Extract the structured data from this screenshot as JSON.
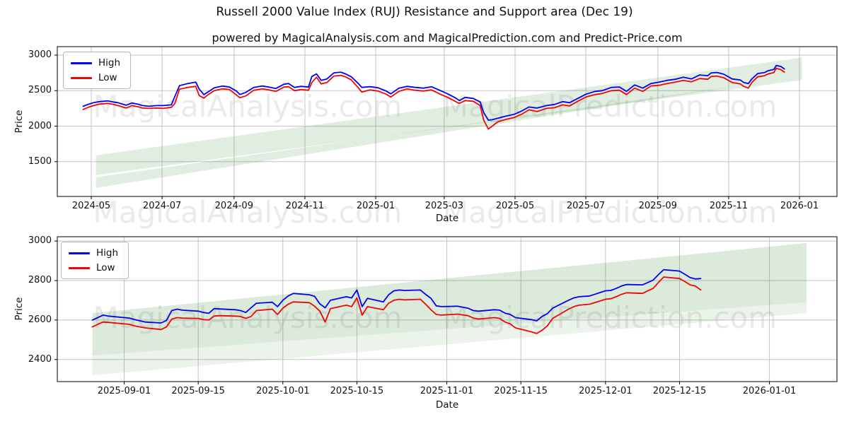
{
  "title": "Russell 2000 Value Index  (RUJ) Resistance and Support area (Dec 19)",
  "subtitle": "powered by MagicalAnalysis.com and MagicalPrediction.com and Predict-Price.com",
  "watermark_left": "MagicalAnalysis.com",
  "watermark_right": "MagicalPrediction.com",
  "accent_colors": {
    "high": "#0202f2",
    "low": "#ee0606",
    "band": "#3c8c3c",
    "grid": "#c3c3c3"
  },
  "chart_data": [
    {
      "type": "line",
      "name": "full-history",
      "xlabel": "Date",
      "ylabel": "Price",
      "grid": true,
      "legend_position": "upper left",
      "xlim": [
        "2024-04-02",
        "2026-02-02"
      ],
      "ylim": [
        1000,
        3120
      ],
      "y_ticks": [
        1500,
        2000,
        2500,
        3000
      ],
      "x_ticks": [
        {
          "date": "2024-05-01",
          "label": "2024-05"
        },
        {
          "date": "2024-07-01",
          "label": "2024-07"
        },
        {
          "date": "2024-09-01",
          "label": "2024-09"
        },
        {
          "date": "2024-11-01",
          "label": "2024-11"
        },
        {
          "date": "2025-01-01",
          "label": "2025-01"
        },
        {
          "date": "2025-03-01",
          "label": "2025-03"
        },
        {
          "date": "2025-05-01",
          "label": "2025-05"
        },
        {
          "date": "2025-07-01",
          "label": "2025-07"
        },
        {
          "date": "2025-09-01",
          "label": "2025-09"
        },
        {
          "date": "2025-11-01",
          "label": "2025-11"
        },
        {
          "date": "2026-01-01",
          "label": "2026-01"
        }
      ],
      "bands": [
        {
          "name": "support-resistance-channel-upper",
          "color": "#3c8c3c",
          "opacity": 0.16,
          "polygon": [
            [
              "2024-05-05",
              1590
            ],
            [
              "2026-01-03",
              2965
            ],
            [
              "2026-01-03",
              2650
            ],
            [
              "2024-05-05",
              1310
            ]
          ]
        },
        {
          "name": "support-resistance-channel-lower",
          "color": "#3c8c3c",
          "opacity": 0.16,
          "polygon": [
            [
              "2024-05-05",
              1280
            ],
            [
              "2025-11-11",
              2575
            ],
            [
              "2024-05-05",
              1130
            ]
          ]
        }
      ],
      "dates": [
        "2024-04-24",
        "2024-04-29",
        "2024-05-03",
        "2024-05-08",
        "2024-05-15",
        "2024-05-20",
        "2024-05-24",
        "2024-05-31",
        "2024-06-05",
        "2024-06-11",
        "2024-06-14",
        "2024-06-20",
        "2024-06-26",
        "2024-07-02",
        "2024-07-09",
        "2024-07-12",
        "2024-07-16",
        "2024-07-23",
        "2024-07-30",
        "2024-08-02",
        "2024-08-06",
        "2024-08-09",
        "2024-08-15",
        "2024-08-22",
        "2024-08-28",
        "2024-09-03",
        "2024-09-06",
        "2024-09-11",
        "2024-09-18",
        "2024-09-25",
        "2024-10-01",
        "2024-10-07",
        "2024-10-14",
        "2024-10-18",
        "2024-10-23",
        "2024-10-29",
        "2024-11-04",
        "2024-11-07",
        "2024-11-11",
        "2024-11-15",
        "2024-11-20",
        "2024-11-26",
        "2024-12-02",
        "2024-12-06",
        "2024-12-11",
        "2024-12-17",
        "2024-12-20",
        "2024-12-27",
        "2025-01-03",
        "2025-01-10",
        "2025-01-14",
        "2025-01-21",
        "2025-01-28",
        "2025-02-04",
        "2025-02-11",
        "2025-02-18",
        "2025-02-25",
        "2025-03-04",
        "2025-03-11",
        "2025-03-14",
        "2025-03-19",
        "2025-03-26",
        "2025-04-01",
        "2025-04-04",
        "2025-04-08",
        "2025-04-11",
        "2025-04-16",
        "2025-04-23",
        "2025-04-30",
        "2025-05-07",
        "2025-05-13",
        "2025-05-20",
        "2025-05-28",
        "2025-06-04",
        "2025-06-11",
        "2025-06-17",
        "2025-06-24",
        "2025-07-01",
        "2025-07-09",
        "2025-07-15",
        "2025-07-23",
        "2025-07-30",
        "2025-08-05",
        "2025-08-12",
        "2025-08-19",
        "2025-08-26",
        "2025-09-02",
        "2025-09-09",
        "2025-09-16",
        "2025-09-23",
        "2025-09-30",
        "2025-10-07",
        "2025-10-14",
        "2025-10-17",
        "2025-10-22",
        "2025-10-28",
        "2025-11-04",
        "2025-11-11",
        "2025-11-14",
        "2025-11-18",
        "2025-11-21",
        "2025-11-26",
        "2025-12-02",
        "2025-12-05",
        "2025-12-10",
        "2025-12-12",
        "2025-12-16",
        "2025-12-19"
      ],
      "series": [
        {
          "name": "High",
          "color": "#0202f2",
          "values": [
            2280,
            2310,
            2330,
            2345,
            2355,
            2340,
            2330,
            2295,
            2325,
            2305,
            2290,
            2280,
            2290,
            2290,
            2300,
            2420,
            2570,
            2600,
            2620,
            2520,
            2445,
            2475,
            2540,
            2565,
            2550,
            2495,
            2445,
            2475,
            2545,
            2565,
            2550,
            2530,
            2590,
            2600,
            2545,
            2560,
            2550,
            2700,
            2735,
            2645,
            2665,
            2750,
            2760,
            2735,
            2695,
            2600,
            2545,
            2555,
            2540,
            2495,
            2455,
            2535,
            2560,
            2545,
            2535,
            2555,
            2505,
            2455,
            2395,
            2360,
            2405,
            2390,
            2340,
            2190,
            2085,
            2090,
            2110,
            2140,
            2165,
            2215,
            2270,
            2255,
            2290,
            2305,
            2345,
            2330,
            2390,
            2450,
            2490,
            2500,
            2545,
            2550,
            2490,
            2580,
            2535,
            2600,
            2620,
            2645,
            2660,
            2690,
            2665,
            2720,
            2710,
            2750,
            2755,
            2730,
            2665,
            2650,
            2615,
            2600,
            2665,
            2740,
            2755,
            2780,
            2800,
            2855,
            2840,
            2805
          ]
        },
        {
          "name": "Low",
          "color": "#ee0606",
          "values": [
            2235,
            2270,
            2290,
            2310,
            2320,
            2305,
            2290,
            2255,
            2290,
            2270,
            2255,
            2250,
            2255,
            2250,
            2265,
            2320,
            2520,
            2545,
            2560,
            2430,
            2395,
            2435,
            2500,
            2525,
            2515,
            2440,
            2400,
            2425,
            2505,
            2525,
            2510,
            2490,
            2550,
            2555,
            2500,
            2515,
            2505,
            2615,
            2690,
            2595,
            2615,
            2705,
            2715,
            2695,
            2650,
            2540,
            2480,
            2510,
            2495,
            2450,
            2410,
            2490,
            2525,
            2505,
            2495,
            2510,
            2455,
            2405,
            2345,
            2320,
            2360,
            2350,
            2290,
            2085,
            1960,
            1995,
            2060,
            2095,
            2120,
            2170,
            2230,
            2205,
            2250,
            2260,
            2300,
            2285,
            2350,
            2410,
            2445,
            2460,
            2500,
            2505,
            2445,
            2535,
            2490,
            2565,
            2575,
            2600,
            2620,
            2645,
            2625,
            2670,
            2660,
            2700,
            2705,
            2680,
            2615,
            2595,
            2560,
            2535,
            2615,
            2695,
            2710,
            2735,
            2755,
            2815,
            2795,
            2760
          ]
        }
      ],
      "legend": [
        {
          "label": "High",
          "color": "#0202f2"
        },
        {
          "label": "Low",
          "color": "#ee0606"
        }
      ]
    },
    {
      "type": "line",
      "name": "recent-detail",
      "xlabel": "Date",
      "ylabel": "Price",
      "grid": true,
      "legend_position": "upper left",
      "xlim": [
        "2025-08-19",
        "2026-01-13"
      ],
      "ylim": [
        2290,
        3040
      ],
      "y_ticks": [
        2400,
        2600,
        2800,
        3000
      ],
      "x_ticks": [
        {
          "date": "2025-09-01",
          "label": "2025-09-01"
        },
        {
          "date": "2025-09-15",
          "label": "2025-09-15"
        },
        {
          "date": "2025-10-01",
          "label": "2025-10-01"
        },
        {
          "date": "2025-10-15",
          "label": "2025-10-15"
        },
        {
          "date": "2025-11-01",
          "label": "2025-11-01"
        },
        {
          "date": "2025-11-15",
          "label": "2025-11-15"
        },
        {
          "date": "2025-12-01",
          "label": "2025-12-01"
        },
        {
          "date": "2025-12-15",
          "label": "2025-12-15"
        },
        {
          "date": "2026-01-01",
          "label": "2026-01-01"
        }
      ],
      "bands": [
        {
          "name": "support-resistance-channel-main",
          "color": "#3c8c3c",
          "opacity": 0.18,
          "polygon": [
            [
              "2025-08-26",
              2635
            ],
            [
              "2026-01-08",
              2990
            ],
            [
              "2026-01-08",
              2690
            ],
            [
              "2025-08-26",
              2420
            ]
          ]
        },
        {
          "name": "support-resistance-channel-faint",
          "color": "#3c8c3c",
          "opacity": 0.1,
          "polygon": [
            [
              "2025-08-26",
              2420
            ],
            [
              "2026-01-08",
              2690
            ],
            [
              "2026-01-08",
              2635
            ],
            [
              "2025-08-26",
              2320
            ]
          ]
        }
      ],
      "dates": [
        "2025-08-26",
        "2025-08-27",
        "2025-08-28",
        "2025-08-29",
        "2025-09-02",
        "2025-09-03",
        "2025-09-04",
        "2025-09-05",
        "2025-09-08",
        "2025-09-09",
        "2025-09-10",
        "2025-09-11",
        "2025-09-12",
        "2025-09-15",
        "2025-09-16",
        "2025-09-17",
        "2025-09-18",
        "2025-09-19",
        "2025-09-22",
        "2025-09-23",
        "2025-09-24",
        "2025-09-25",
        "2025-09-26",
        "2025-09-29",
        "2025-09-30",
        "2025-10-01",
        "2025-10-02",
        "2025-10-03",
        "2025-10-06",
        "2025-10-07",
        "2025-10-08",
        "2025-10-09",
        "2025-10-10",
        "2025-10-13",
        "2025-10-14",
        "2025-10-15",
        "2025-10-16",
        "2025-10-17",
        "2025-10-20",
        "2025-10-21",
        "2025-10-22",
        "2025-10-23",
        "2025-10-24",
        "2025-10-27",
        "2025-10-28",
        "2025-10-29",
        "2025-10-30",
        "2025-10-31",
        "2025-11-03",
        "2025-11-04",
        "2025-11-05",
        "2025-11-06",
        "2025-11-07",
        "2025-11-10",
        "2025-11-11",
        "2025-11-12",
        "2025-11-13",
        "2025-11-14",
        "2025-11-17",
        "2025-11-18",
        "2025-11-19",
        "2025-11-20",
        "2025-11-21",
        "2025-11-24",
        "2025-11-25",
        "2025-11-26",
        "2025-11-28",
        "2025-12-01",
        "2025-12-02",
        "2025-12-03",
        "2025-12-04",
        "2025-12-05",
        "2025-12-08",
        "2025-12-09",
        "2025-12-10",
        "2025-12-11",
        "2025-12-12",
        "2025-12-15",
        "2025-12-16",
        "2025-12-17",
        "2025-12-18",
        "2025-12-19"
      ],
      "series": [
        {
          "name": "High",
          "color": "#0202f2",
          "values": [
            2600,
            2612,
            2625,
            2620,
            2610,
            2602,
            2596,
            2590,
            2585,
            2598,
            2648,
            2655,
            2650,
            2645,
            2638,
            2634,
            2658,
            2656,
            2652,
            2648,
            2638,
            2662,
            2685,
            2690,
            2668,
            2700,
            2722,
            2735,
            2728,
            2720,
            2682,
            2662,
            2700,
            2718,
            2712,
            2752,
            2668,
            2710,
            2692,
            2728,
            2748,
            2752,
            2750,
            2752,
            2730,
            2710,
            2672,
            2668,
            2670,
            2665,
            2660,
            2648,
            2645,
            2652,
            2650,
            2635,
            2628,
            2612,
            2602,
            2596,
            2618,
            2632,
            2660,
            2700,
            2712,
            2718,
            2722,
            2748,
            2750,
            2760,
            2772,
            2780,
            2778,
            2790,
            2802,
            2830,
            2855,
            2848,
            2832,
            2815,
            2808,
            2810
          ]
        },
        {
          "name": "Low",
          "color": "#ee0606",
          "values": [
            2565,
            2578,
            2590,
            2588,
            2578,
            2570,
            2565,
            2560,
            2552,
            2565,
            2605,
            2612,
            2610,
            2608,
            2602,
            2600,
            2620,
            2622,
            2620,
            2618,
            2608,
            2618,
            2648,
            2655,
            2628,
            2660,
            2680,
            2692,
            2688,
            2670,
            2645,
            2590,
            2658,
            2675,
            2668,
            2712,
            2625,
            2668,
            2652,
            2685,
            2700,
            2705,
            2702,
            2705,
            2680,
            2652,
            2628,
            2625,
            2630,
            2626,
            2622,
            2610,
            2605,
            2612,
            2608,
            2590,
            2580,
            2560,
            2540,
            2532,
            2548,
            2570,
            2608,
            2655,
            2668,
            2675,
            2680,
            2705,
            2708,
            2718,
            2730,
            2738,
            2735,
            2748,
            2760,
            2790,
            2818,
            2810,
            2795,
            2778,
            2772,
            2752
          ]
        }
      ],
      "legend": [
        {
          "label": "High",
          "color": "#0202f2"
        },
        {
          "label": "Low",
          "color": "#ee0606"
        }
      ]
    }
  ]
}
